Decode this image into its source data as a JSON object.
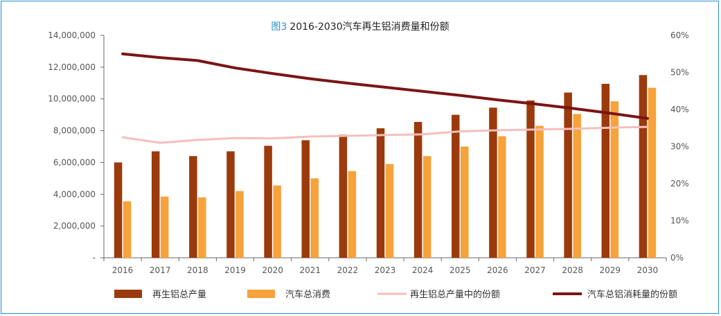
{
  "chart_data": {
    "type": "bar",
    "title_prefix": "图3",
    "title": "2016-2030汽车再生铝消费量和份额",
    "categories": [
      "2016",
      "2017",
      "2018",
      "2019",
      "2020",
      "2021",
      "2022",
      "2023",
      "2024",
      "2025",
      "2026",
      "2027",
      "2028",
      "2029",
      "2030"
    ],
    "y_left": {
      "range": [
        0,
        14000000
      ],
      "ticks": [
        0,
        2000000,
        4000000,
        6000000,
        8000000,
        10000000,
        12000000,
        14000000
      ],
      "tick_labels": [
        "-",
        "2,000,000",
        "4,000,000",
        "6,000,000",
        "8,000,000",
        "10,000,000",
        "12,000,000",
        "14,000,000"
      ]
    },
    "y_right": {
      "range": [
        0,
        60
      ],
      "ticks": [
        0,
        10,
        20,
        30,
        40,
        50,
        60
      ],
      "tick_labels": [
        "0%",
        "10%",
        "20%",
        "30%",
        "40%",
        "50%",
        "60%"
      ]
    },
    "series": [
      {
        "name": "再生铝总产量",
        "kind": "bar",
        "axis": "left",
        "color": "#9b3a0c",
        "values": [
          6000000,
          6700000,
          6400000,
          6700000,
          7050000,
          7400000,
          7750000,
          8150000,
          8550000,
          9000000,
          9450000,
          9900000,
          10400000,
          10950000,
          11500000
        ]
      },
      {
        "name": "汽车总消费",
        "kind": "bar",
        "axis": "left",
        "color": "#f7a23a",
        "values": [
          3550000,
          3850000,
          3800000,
          4200000,
          4550000,
          5000000,
          5450000,
          5900000,
          6400000,
          7000000,
          7650000,
          8300000,
          9050000,
          9850000,
          10700000
        ]
      },
      {
        "name": "再生铝总产量中的份额",
        "kind": "line",
        "axis": "right",
        "color": "#f4bfbd",
        "values": [
          32.5,
          31.0,
          31.8,
          32.3,
          32.2,
          32.7,
          32.9,
          33.1,
          33.3,
          34.1,
          34.4,
          34.6,
          34.8,
          35.1,
          35.3
        ]
      },
      {
        "name": "汽车总铝消耗量的份额",
        "kind": "line",
        "axis": "right",
        "color": "#7b1416",
        "values": [
          55.0,
          54.0,
          53.2,
          51.2,
          49.7,
          48.3,
          47.1,
          46.0,
          44.9,
          43.8,
          42.6,
          41.5,
          40.3,
          39.0,
          37.6
        ]
      }
    ],
    "legend_position": "bottom",
    "grid": false
  }
}
